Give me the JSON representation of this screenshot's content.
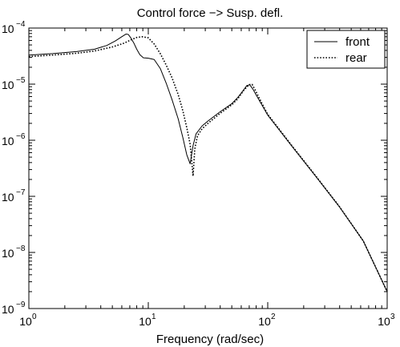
{
  "chart_data": {
    "type": "line",
    "title": "Control force −> Susp. defl.",
    "xlabel": "Frequency (rad/sec)",
    "ylabel": "",
    "xscale": "log",
    "yscale": "log",
    "xlim": [
      1,
      1000
    ],
    "ylim": [
      1e-09,
      0.0001
    ],
    "grid": false,
    "legend_position": "top-right",
    "x_ticks": [
      {
        "base": "10",
        "exp": "0",
        "value": 1
      },
      {
        "base": "10",
        "exp": "1",
        "value": 10
      },
      {
        "base": "10",
        "exp": "2",
        "value": 100
      },
      {
        "base": "10",
        "exp": "3",
        "value": 1000
      }
    ],
    "y_ticks": [
      {
        "base": "10",
        "exp": "−9",
        "value": 1e-09
      },
      {
        "base": "10",
        "exp": "−8",
        "value": 1e-08
      },
      {
        "base": "10",
        "exp": "−7",
        "value": 1e-07
      },
      {
        "base": "10",
        "exp": "−6",
        "value": 1e-06
      },
      {
        "base": "10",
        "exp": "−5",
        "value": 1e-05
      },
      {
        "base": "10",
        "exp": "−4",
        "value": 0.0001
      }
    ],
    "series": [
      {
        "name": "front",
        "style": "solid",
        "color": "#000000",
        "points": [
          [
            1.0,
            3.3e-05
          ],
          [
            1.58,
            3.5e-05
          ],
          [
            2.5,
            3.8e-05
          ],
          [
            3.55,
            4.2e-05
          ],
          [
            4.5,
            4.9e-05
          ],
          [
            5.3,
            5.9e-05
          ],
          [
            6.0,
            7e-05
          ],
          [
            6.5,
            7.8e-05
          ],
          [
            6.8,
            7.7e-05
          ],
          [
            7.2,
            6.5e-05
          ],
          [
            7.6,
            5.3e-05
          ],
          [
            8.0,
            4.2e-05
          ],
          [
            8.5,
            3.35e-05
          ],
          [
            9.1,
            2.95e-05
          ],
          [
            10.0,
            2.9e-05
          ],
          [
            11.2,
            2.75e-05
          ],
          [
            12.6,
            1.9e-05
          ],
          [
            14.1,
            1.05e-05
          ],
          [
            15.8,
            5.3e-06
          ],
          [
            17.8,
            2.4e-06
          ],
          [
            19.5,
            1.1e-06
          ],
          [
            21.0,
            5.5e-07
          ],
          [
            22.4,
            3.8e-07
          ],
          [
            23.7,
            8e-07
          ],
          [
            25.1,
            1.3e-06
          ],
          [
            28.2,
            1.8e-06
          ],
          [
            31.6,
            2.2e-06
          ],
          [
            39.8,
            3.2e-06
          ],
          [
            50.1,
            4.5e-06
          ],
          [
            56.2,
            5.8e-06
          ],
          [
            63.1,
            8e-06
          ],
          [
            67.0,
            9.5e-06
          ],
          [
            70.8,
            9.7e-06
          ],
          [
            75.0,
            8.2e-06
          ],
          [
            79.4,
            6.6e-06
          ],
          [
            89.1,
            4.3e-06
          ],
          [
            100,
            2.8e-06
          ],
          [
            158,
            8e-07
          ],
          [
            251,
            2.3e-07
          ],
          [
            398,
            6.5e-08
          ],
          [
            631,
            1.6e-08
          ],
          [
            1000,
            2e-09
          ]
        ]
      },
      {
        "name": "rear",
        "style": "dotted",
        "color": "#000000",
        "points": [
          [
            1.0,
            3.1e-05
          ],
          [
            1.58,
            3.3e-05
          ],
          [
            2.5,
            3.55e-05
          ],
          [
            3.55,
            3.9e-05
          ],
          [
            5.0,
            4.6e-05
          ],
          [
            6.3,
            5.4e-05
          ],
          [
            7.2,
            6.2e-05
          ],
          [
            8.0,
            6.8e-05
          ],
          [
            8.9,
            7e-05
          ],
          [
            10.0,
            6.7e-05
          ],
          [
            11.2,
            5.2e-05
          ],
          [
            12.6,
            3.5e-05
          ],
          [
            14.1,
            2.2e-05
          ],
          [
            15.8,
            1.3e-05
          ],
          [
            17.8,
            6.5e-06
          ],
          [
            19.5,
            3.3e-06
          ],
          [
            21.1,
            1.6e-06
          ],
          [
            22.4,
            8.5e-07
          ],
          [
            23.7,
            2.3e-07
          ],
          [
            24.5,
            7e-07
          ],
          [
            25.8,
            1.2e-06
          ],
          [
            28.2,
            1.6e-06
          ],
          [
            31.6,
            2e-06
          ],
          [
            39.8,
            3e-06
          ],
          [
            50.1,
            4.3e-06
          ],
          [
            56.2,
            5.5e-06
          ],
          [
            63.1,
            7.8e-06
          ],
          [
            70.0,
            9.8e-06
          ],
          [
            74.0,
            9.9e-06
          ],
          [
            79.4,
            7.5e-06
          ],
          [
            89.1,
            4.6e-06
          ],
          [
            100,
            2.9e-06
          ],
          [
            158,
            8.2e-07
          ],
          [
            251,
            2.35e-07
          ],
          [
            398,
            6.6e-08
          ],
          [
            631,
            1.6e-08
          ],
          [
            1000,
            2e-09
          ]
        ]
      }
    ]
  }
}
